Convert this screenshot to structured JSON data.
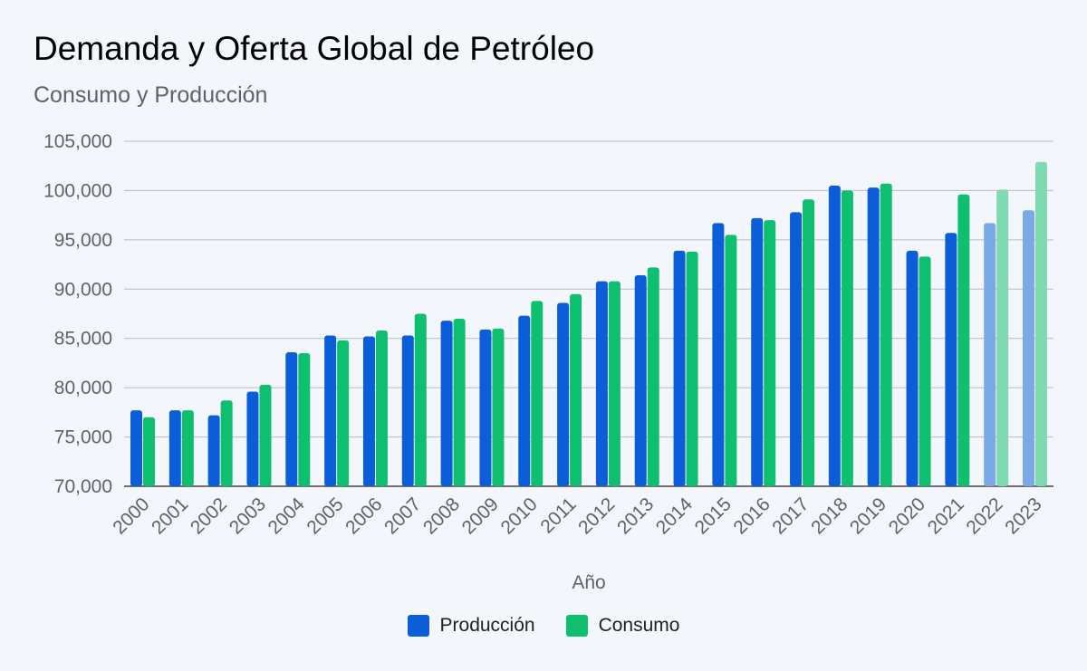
{
  "chart_data": {
    "type": "bar",
    "title": "Demanda y Oferta Global de Petróleo",
    "subtitle": "Consumo y Producción",
    "xlabel": "Año",
    "ylabel": "",
    "ylim": [
      70000,
      105000
    ],
    "yticks": [
      "70,000",
      "75,000",
      "80,000",
      "85,000",
      "90,000",
      "95,000",
      "100,000",
      "105,000"
    ],
    "ytick_values": [
      70000,
      75000,
      80000,
      85000,
      90000,
      95000,
      100000,
      105000
    ],
    "grid": true,
    "legend_position": "bottom",
    "categories": [
      "2000",
      "2001",
      "2002",
      "2003",
      "2004",
      "2005",
      "2006",
      "2007",
      "2008",
      "2009",
      "2010",
      "2011",
      "2012",
      "2013",
      "2014",
      "2015",
      "2016",
      "2017",
      "2018",
      "2019",
      "2020",
      "2021",
      "2022",
      "2023"
    ],
    "highlighted_categories": [
      "2022",
      "2023"
    ],
    "series": [
      {
        "name": "Producción",
        "color": "#0b5ed7",
        "light_color": "#7aa9e6",
        "values": [
          77700,
          77700,
          77200,
          79600,
          83600,
          85300,
          85200,
          85300,
          86800,
          85900,
          87300,
          88600,
          90800,
          91400,
          93900,
          96700,
          97200,
          97800,
          100500,
          100300,
          93900,
          95700,
          96700,
          98000
        ]
      },
      {
        "name": "Consumo",
        "color": "#0dbf6f",
        "light_color": "#7fd9b1",
        "values": [
          77000,
          77700,
          78700,
          80300,
          83500,
          84800,
          85800,
          87500,
          87000,
          86000,
          88800,
          89500,
          90800,
          92200,
          93800,
          95500,
          97000,
          99100,
          100000,
          100700,
          93300,
          99600,
          100100,
          102900
        ]
      }
    ]
  }
}
